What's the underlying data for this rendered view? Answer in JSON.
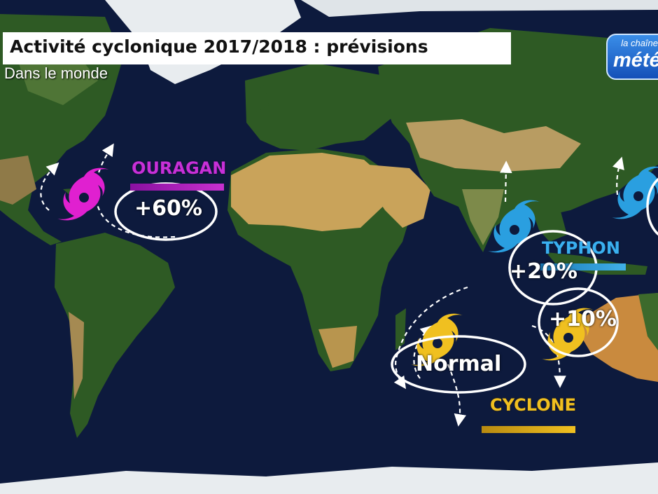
{
  "title": "Activité cyclonique 2017/2018 : prévisions",
  "subtitle": "Dans le monde",
  "logo": {
    "top": "la chaîne",
    "main": "météo",
    "icon": "la-chaine-meteo-logo"
  },
  "regions": {
    "atlantic": {
      "label": "OURAGAN",
      "forecast": "+60%",
      "color": "#e020d0"
    },
    "pacific": {
      "label": "TYPHON",
      "forecast": "+20%",
      "color": "#2a9fe0"
    },
    "australia": {
      "forecast": "+10%"
    },
    "south_indian": {
      "label": "CYCLONE",
      "forecast": "Normal",
      "color": "#f0c020"
    }
  },
  "colors": {
    "ocean": "#0d1a3d",
    "land_green": "#2e5a24",
    "land_desert": "#c9a35a",
    "ice": "#e8ecef"
  }
}
